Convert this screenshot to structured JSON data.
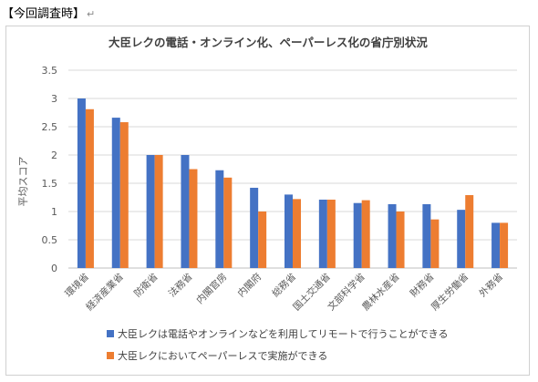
{
  "doc": {
    "heading": "【今回調査時】",
    "return_mark": "↵"
  },
  "chart_data": {
    "type": "bar",
    "title": "大臣レクの電話・オンライン化、ペーパーレス化の省庁別状況",
    "xlabel": "",
    "ylabel": "平均スコア",
    "ylim": [
      0,
      3.5
    ],
    "yticks": [
      "0",
      "0.5",
      "1",
      "1.5",
      "2",
      "2.5",
      "3",
      "3.5"
    ],
    "grid": true,
    "legend_position": "bottom",
    "categories": [
      "環境省",
      "経済産業省",
      "防衛省",
      "法務省",
      "内閣官房",
      "内閣府",
      "総務省",
      "国土交通省",
      "文部科学省",
      "農林水産省",
      "財務省",
      "厚生労働省",
      "外務省"
    ],
    "series": [
      {
        "name": "大臣レクは電話やオンラインなどを利用してリモートで行うことができる",
        "color": "#4472C4",
        "values": [
          3.0,
          2.66,
          2.0,
          2.0,
          1.73,
          1.42,
          1.3,
          1.21,
          1.15,
          1.13,
          1.13,
          1.03,
          0.8
        ]
      },
      {
        "name": "大臣レクにおいてペーパーレスで実施ができる",
        "color": "#ED7D31",
        "values": [
          2.81,
          2.58,
          2.0,
          1.75,
          1.6,
          1.0,
          1.22,
          1.21,
          1.2,
          1.0,
          0.86,
          1.29,
          0.8
        ]
      }
    ]
  }
}
